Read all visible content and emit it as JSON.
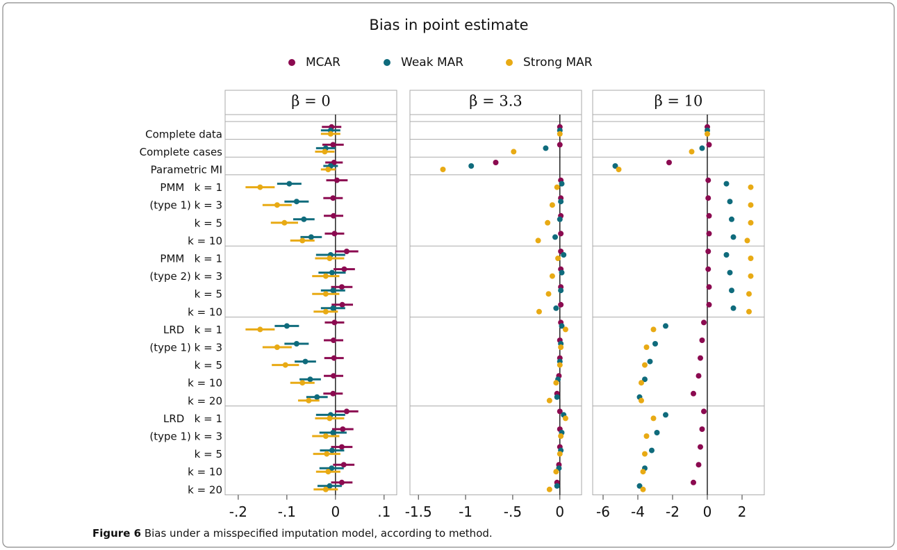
{
  "title": "Bias in point estimate",
  "caption": {
    "label": "Figure 6",
    "text": "Bias under a misspecified imputation model, according to method."
  },
  "chart_data": {
    "type": "dot",
    "categories": [
      "Complete data",
      "Complete cases",
      "Parametric MI",
      "PMM   k = 1",
      "(type 1) k = 3",
      "k = 5",
      "k = 10",
      "PMM   k = 1",
      "(type 2) k = 3",
      "k = 5",
      "k = 10",
      "LRD   k = 1",
      "(type 1) k = 3",
      "k = 5",
      "k = 10",
      "k = 20",
      "LRD   k = 1",
      "(type 1) k = 3",
      "k = 5",
      "k = 10",
      "k = 20"
    ],
    "series": [
      {
        "name": "MCAR",
        "color": "#8b0a50"
      },
      {
        "name": "Weak MAR",
        "color": "#0f6b7c"
      },
      {
        "name": "Strong MAR",
        "color": "#e8aa14"
      }
    ],
    "panels": [
      {
        "title": "β = 0",
        "xlim": [
          -0.227,
          0.126
        ],
        "xticks": [
          {
            "value": -0.2,
            "label": "-.2"
          },
          {
            "value": -0.1,
            "label": "-.1"
          },
          0,
          {
            "value": 0.1,
            "label": ".1"
          }
        ],
        "series": [
          {
            "values": [
              -0.008,
              -0.005,
              -0.003,
              0.003,
              -0.005,
              -0.004,
              -0.002,
              0.023,
              0.018,
              0.013,
              0.014,
              -0.002,
              -0.004,
              -0.003,
              -0.004,
              -0.005,
              0.023,
              0.015,
              0.013,
              0.017,
              0.013
            ],
            "errors": [
              0.02,
              0.022,
              0.018,
              0.022,
              0.02,
              0.02,
              0.02,
              0.024,
              0.022,
              0.022,
              0.022,
              0.02,
              0.02,
              0.02,
              0.02,
              0.02,
              0.024,
              0.022,
              0.022,
              0.022,
              0.022
            ]
          },
          {
            "values": [
              -0.01,
              -0.02,
              -0.01,
              -0.095,
              -0.08,
              -0.065,
              -0.05,
              -0.01,
              -0.007,
              -0.005,
              -0.005,
              -0.1,
              -0.08,
              -0.062,
              -0.052,
              -0.038,
              -0.01,
              -0.005,
              -0.007,
              -0.008,
              -0.012
            ],
            "errors": [
              0.02,
              0.02,
              0.015,
              0.025,
              0.025,
              0.022,
              0.022,
              0.03,
              0.028,
              0.025,
              0.025,
              0.025,
              0.025,
              0.022,
              0.022,
              0.022,
              0.03,
              0.028,
              0.025,
              0.025,
              0.025
            ]
          },
          {
            "values": [
              -0.01,
              -0.022,
              -0.015,
              -0.155,
              -0.12,
              -0.105,
              -0.068,
              -0.012,
              -0.02,
              -0.02,
              -0.02,
              -0.155,
              -0.12,
              -0.103,
              -0.068,
              -0.055,
              -0.012,
              -0.02,
              -0.018,
              -0.015,
              -0.02
            ],
            "errors": [
              0.02,
              0.02,
              0.015,
              0.03,
              0.03,
              0.028,
              0.025,
              0.03,
              0.028,
              0.028,
              0.025,
              0.03,
              0.03,
              0.028,
              0.025,
              0.022,
              0.03,
              0.028,
              0.028,
              0.025,
              0.025
            ]
          }
        ]
      },
      {
        "title": "β = 3.3",
        "xlim": [
          -1.59,
          0.23
        ],
        "xticks": [
          -1.5,
          -1,
          {
            "value": -0.5,
            "label": "-.5"
          },
          0
        ],
        "series": [
          {
            "values": [
              0,
              0,
              -0.68,
              0.01,
              0.01,
              0.01,
              0.01,
              0.01,
              0.01,
              0.01,
              0.01,
              0.01,
              0,
              0,
              -0.01,
              -0.03,
              0,
              0,
              0,
              -0.01,
              -0.03
            ]
          },
          {
            "values": [
              0,
              -0.15,
              -0.94,
              0.02,
              0.01,
              0,
              -0.05,
              0.04,
              0.02,
              0.01,
              -0.04,
              0.02,
              0.01,
              0,
              -0.02,
              -0.03,
              0.04,
              0.02,
              0.01,
              -0.01,
              -0.03
            ]
          },
          {
            "values": [
              0,
              -0.49,
              -1.24,
              -0.03,
              -0.08,
              -0.13,
              -0.23,
              -0.02,
              -0.08,
              -0.12,
              -0.22,
              0.06,
              0.01,
              0,
              -0.04,
              -0.11,
              0.06,
              0.01,
              0,
              -0.04,
              -0.11
            ]
          }
        ]
      },
      {
        "title": "β = 10",
        "xlim": [
          -6.6,
          3.28
        ],
        "xticks": [
          -6,
          -4,
          -2,
          0,
          2
        ],
        "series": [
          {
            "values": [
              0,
              0.1,
              -2.2,
              0.05,
              0.05,
              0.1,
              0.1,
              0.05,
              0.05,
              0.1,
              0.1,
              -0.2,
              -0.3,
              -0.4,
              -0.5,
              -0.8,
              -0.2,
              -0.3,
              -0.4,
              -0.5,
              -0.8
            ]
          },
          {
            "values": [
              0,
              -0.3,
              -5.3,
              1.1,
              1.3,
              1.4,
              1.5,
              1.1,
              1.3,
              1.4,
              1.5,
              -2.4,
              -3.0,
              -3.3,
              -3.6,
              -3.9,
              -2.4,
              -2.9,
              -3.2,
              -3.6,
              -3.9
            ]
          },
          {
            "values": [
              0,
              -0.9,
              -5.1,
              2.5,
              2.5,
              2.5,
              2.3,
              2.5,
              2.5,
              2.4,
              2.4,
              -3.1,
              -3.5,
              -3.6,
              -3.8,
              -3.8,
              -3.1,
              -3.5,
              -3.6,
              -3.7,
              -3.7
            ]
          }
        ]
      }
    ]
  }
}
